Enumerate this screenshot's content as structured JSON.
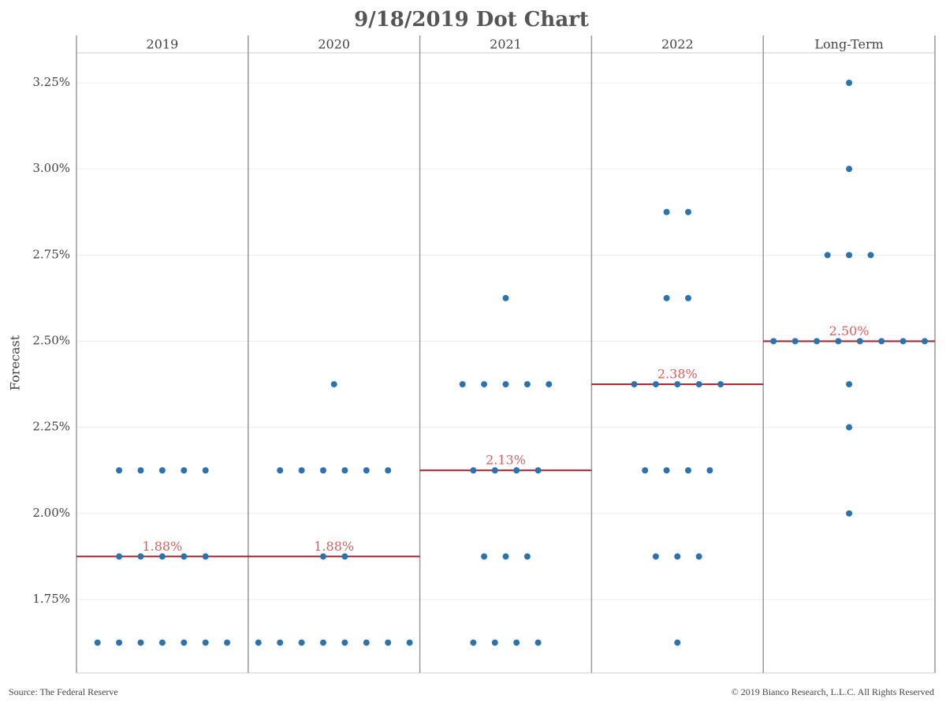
{
  "chart_data": {
    "type": "dot",
    "title": "9/18/2019 Dot Chart",
    "y_label": "Forecast",
    "source": "Source: The Federal Reserve",
    "copyright": "© 2019 Bianco Research, L.L.C. All Rights Reserved",
    "dot_color": "#2a73b0",
    "median_color": "#a31f2a",
    "median_label_color": "#e05a5a",
    "grid": true,
    "ylim": [
      1.537,
      3.337
    ],
    "yticks": [
      {
        "value": 1.75,
        "label": "1.75%"
      },
      {
        "value": 2.0,
        "label": "2.00%"
      },
      {
        "value": 2.25,
        "label": "2.25%"
      },
      {
        "value": 2.5,
        "label": "2.50%"
      },
      {
        "value": 2.75,
        "label": "2.75%"
      },
      {
        "value": 3.0,
        "label": "3.00%"
      },
      {
        "value": 3.25,
        "label": "3.25%"
      }
    ],
    "panels": [
      {
        "name": "2019",
        "values": [
          2.125,
          2.125,
          2.125,
          2.125,
          2.125,
          1.875,
          1.875,
          1.875,
          1.875,
          1.875,
          1.625,
          1.625,
          1.625,
          1.625,
          1.625,
          1.625,
          1.625
        ],
        "median": 1.875,
        "median_label": "1.88%"
      },
      {
        "name": "2020",
        "values": [
          2.375,
          2.125,
          2.125,
          2.125,
          2.125,
          2.125,
          2.125,
          1.875,
          1.875,
          1.625,
          1.625,
          1.625,
          1.625,
          1.625,
          1.625,
          1.625,
          1.625
        ],
        "median": 1.875,
        "median_label": "1.88%"
      },
      {
        "name": "2021",
        "values": [
          2.625,
          2.375,
          2.375,
          2.375,
          2.375,
          2.375,
          2.125,
          2.125,
          2.125,
          2.125,
          1.875,
          1.875,
          1.875,
          1.625,
          1.625,
          1.625,
          1.625
        ],
        "median": 2.125,
        "median_label": "2.13%"
      },
      {
        "name": "2022",
        "values": [
          2.875,
          2.875,
          2.625,
          2.625,
          2.375,
          2.375,
          2.375,
          2.375,
          2.375,
          2.125,
          2.125,
          2.125,
          2.125,
          1.875,
          1.875,
          1.875,
          1.625
        ],
        "median": 2.375,
        "median_label": "2.38%"
      },
      {
        "name": "Long-Term",
        "values": [
          3.25,
          3.0,
          2.75,
          2.75,
          2.75,
          2.5,
          2.5,
          2.5,
          2.5,
          2.5,
          2.5,
          2.5,
          2.5,
          2.375,
          2.25,
          2.0
        ],
        "median": 2.5,
        "median_label": "2.50%"
      }
    ]
  }
}
